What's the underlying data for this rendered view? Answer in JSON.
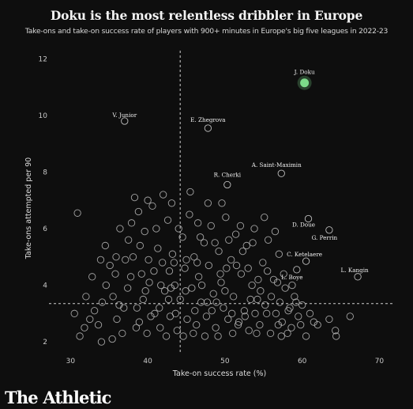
{
  "header": {
    "title": "Doku is the most relentless dribbler in Europe",
    "subtitle": "Take-ons and take-on success rate of players with 900+ minutes in Europe's big five leagues in 2022-23"
  },
  "brand": {
    "name": "The Athletic"
  },
  "colors": {
    "background": "#0e0e0e",
    "points": "#bdbdbd",
    "highlight": "#7ddc8a",
    "text": "#e8e8e8"
  },
  "chart_data": {
    "type": "scatter",
    "title": "Doku is the most relentless dribbler in Europe",
    "subtitle": "Take-ons and take-on success rate of players with 900+ minutes in Europe's big five leagues in 2022-23",
    "xlabel": "Take-on success rate (%)",
    "ylabel": "Take-ons attempted per 90",
    "xlim": [
      27,
      72
    ],
    "ylim": [
      1.5,
      12.4
    ],
    "xticks": [
      30,
      40,
      50,
      60,
      70
    ],
    "yticks": [
      2,
      4,
      6,
      8,
      10,
      12
    ],
    "grid": false,
    "reference_lines": {
      "x_mean": 44.2,
      "y_mean": 3.35
    },
    "highlight": {
      "label": "J. Doku",
      "x": 60.3,
      "y": 11.15
    },
    "labeled_points": [
      {
        "label": "V. Junior",
        "x": 37.0,
        "y": 9.8
      },
      {
        "label": "E. Zhegrova",
        "x": 47.8,
        "y": 9.55
      },
      {
        "label": "R. Cherki",
        "x": 50.3,
        "y": 7.55
      },
      {
        "label": "A. Saint-Maximin",
        "x": 57.3,
        "y": 7.95
      },
      {
        "label": "D. Doue",
        "x": 60.8,
        "y": 6.35
      },
      {
        "label": "G. Perrin",
        "x": 63.5,
        "y": 5.95
      },
      {
        "label": "C. Ketelaere",
        "x": 60.5,
        "y": 4.85
      },
      {
        "label": "L. Boye",
        "x": 59.3,
        "y": 4.55
      },
      {
        "label": "L. Kangin",
        "x": 67.2,
        "y": 4.3
      }
    ],
    "points": [
      [
        30.9,
        6.55
      ],
      [
        31.2,
        2.2
      ],
      [
        31.8,
        2.5
      ],
      [
        32.5,
        2.8
      ],
      [
        33.1,
        3.1
      ],
      [
        33.6,
        2.6
      ],
      [
        34.1,
        3.4
      ],
      [
        34.6,
        4.0
      ],
      [
        35.1,
        4.7
      ],
      [
        35.5,
        3.6
      ],
      [
        35.9,
        5.0
      ],
      [
        36.3,
        3.3
      ],
      [
        36.7,
        2.3
      ],
      [
        37.1,
        4.9
      ],
      [
        37.5,
        5.6
      ],
      [
        37.9,
        6.2
      ],
      [
        38.3,
        7.1
      ],
      [
        38.6,
        3.2
      ],
      [
        38.9,
        2.7
      ],
      [
        39.2,
        4.4
      ],
      [
        39.6,
        5.9
      ],
      [
        39.9,
        2.3
      ],
      [
        40.2,
        4.1
      ],
      [
        40.6,
        6.8
      ],
      [
        40.9,
        3.0
      ],
      [
        41.3,
        5.3
      ],
      [
        41.6,
        2.5
      ],
      [
        41.9,
        4.8
      ],
      [
        42.2,
        3.8
      ],
      [
        42.6,
        6.3
      ],
      [
        42.9,
        2.9
      ],
      [
        43.2,
        5.1
      ],
      [
        43.5,
        4.0
      ],
      [
        43.8,
        2.4
      ],
      [
        44.2,
        3.5
      ],
      [
        44.5,
        5.7
      ],
      [
        44.8,
        4.6
      ],
      [
        45.1,
        2.8
      ],
      [
        45.4,
        6.5
      ],
      [
        45.7,
        3.9
      ],
      [
        46.0,
        5.0
      ],
      [
        46.3,
        2.6
      ],
      [
        46.6,
        4.3
      ],
      [
        46.9,
        3.4
      ],
      [
        47.3,
        5.5
      ],
      [
        47.6,
        2.9
      ],
      [
        47.9,
        4.7
      ],
      [
        48.2,
        6.1
      ],
      [
        48.5,
        3.7
      ],
      [
        48.8,
        2.5
      ],
      [
        49.2,
        5.2
      ],
      [
        49.5,
        4.1
      ],
      [
        49.8,
        3.2
      ],
      [
        50.1,
        6.4
      ],
      [
        50.4,
        2.8
      ],
      [
        50.8,
        4.9
      ],
      [
        51.1,
        3.6
      ],
      [
        51.4,
        5.8
      ],
      [
        51.8,
        2.7
      ],
      [
        52.1,
        4.4
      ],
      [
        52.5,
        3.1
      ],
      [
        52.8,
        5.4
      ],
      [
        53.1,
        2.4
      ],
      [
        53.5,
        4.0
      ],
      [
        53.8,
        6.0
      ],
      [
        54.2,
        3.5
      ],
      [
        54.5,
        2.6
      ],
      [
        54.9,
        4.8
      ],
      [
        55.2,
        3.3
      ],
      [
        55.6,
        5.6
      ],
      [
        55.9,
        2.3
      ],
      [
        56.3,
        4.2
      ],
      [
        56.6,
        3.0
      ],
      [
        57.0,
        5.1
      ],
      [
        57.4,
        2.7
      ],
      [
        57.8,
        3.9
      ],
      [
        58.2,
        3.1
      ],
      [
        58.6,
        2.5
      ],
      [
        59.0,
        3.6
      ],
      [
        59.5,
        2.9
      ],
      [
        60.0,
        3.3
      ],
      [
        60.5,
        2.2
      ],
      [
        61.0,
        3.0
      ],
      [
        62.0,
        2.6
      ],
      [
        63.5,
        2.8
      ],
      [
        64.3,
        2.4
      ],
      [
        64.4,
        2.2
      ],
      [
        66.2,
        2.9
      ],
      [
        32.8,
        4.3
      ],
      [
        33.9,
        4.9
      ],
      [
        34.5,
        5.4
      ],
      [
        35.4,
        2.1
      ],
      [
        36.4,
        6.0
      ],
      [
        37.4,
        3.9
      ],
      [
        38.1,
        5.0
      ],
      [
        38.8,
        6.6
      ],
      [
        39.4,
        3.5
      ],
      [
        40.0,
        7.0
      ],
      [
        40.8,
        4.5
      ],
      [
        41.1,
        6.0
      ],
      [
        41.5,
        3.2
      ],
      [
        42.0,
        7.2
      ],
      [
        42.4,
        2.2
      ],
      [
        42.8,
        4.5
      ],
      [
        43.1,
        6.9
      ],
      [
        43.6,
        3.0
      ],
      [
        44.0,
        6.0
      ],
      [
        44.6,
        2.2
      ],
      [
        45.0,
        4.9
      ],
      [
        45.5,
        7.3
      ],
      [
        46.1,
        3.1
      ],
      [
        46.5,
        6.2
      ],
      [
        47.0,
        4.0
      ],
      [
        47.4,
        2.2
      ],
      [
        47.8,
        6.9
      ],
      [
        48.3,
        3.1
      ],
      [
        48.7,
        5.5
      ],
      [
        49.1,
        2.2
      ],
      [
        49.6,
        6.9
      ],
      [
        50.0,
        3.8
      ],
      [
        50.5,
        5.6
      ],
      [
        51.0,
        2.3
      ],
      [
        51.5,
        4.7
      ],
      [
        52.0,
        6.1
      ],
      [
        52.6,
        2.9
      ],
      [
        53.0,
        4.6
      ],
      [
        53.6,
        5.5
      ],
      [
        54.1,
        2.3
      ],
      [
        54.6,
        3.8
      ],
      [
        55.1,
        6.4
      ],
      [
        55.5,
        4.5
      ],
      [
        56.0,
        3.6
      ],
      [
        56.5,
        5.9
      ],
      [
        57.1,
        3.4
      ],
      [
        57.6,
        4.4
      ],
      [
        58.1,
        2.3
      ],
      [
        58.7,
        4.0
      ],
      [
        59.2,
        3.4
      ],
      [
        59.8,
        2.6
      ],
      [
        34.0,
        2.0
      ],
      [
        36.0,
        2.8
      ],
      [
        37.8,
        4.3
      ],
      [
        39.0,
        5.4
      ],
      [
        40.4,
        2.9
      ],
      [
        41.7,
        4.0
      ],
      [
        43.4,
        4.8
      ],
      [
        44.9,
        3.8
      ],
      [
        46.4,
        4.8
      ],
      [
        47.7,
        3.4
      ],
      [
        49.4,
        4.4
      ],
      [
        50.9,
        3.0
      ],
      [
        52.3,
        5.2
      ],
      [
        53.9,
        3.0
      ],
      [
        55.4,
        3.0
      ],
      [
        56.9,
        2.6
      ],
      [
        58.4,
        3.2
      ],
      [
        30.5,
        3.0
      ],
      [
        32.0,
        3.6
      ],
      [
        35.8,
        4.4
      ],
      [
        38.5,
        2.5
      ],
      [
        40.1,
        4.9
      ],
      [
        42.7,
        3.5
      ],
      [
        45.9,
        2.3
      ],
      [
        48.9,
        3.4
      ],
      [
        51.7,
        2.6
      ],
      [
        54.3,
        4.2
      ],
      [
        57.3,
        2.2
      ],
      [
        61.5,
        2.7
      ],
      [
        36.9,
        3.2
      ],
      [
        39.7,
        3.8
      ],
      [
        43.0,
        3.9
      ],
      [
        46.8,
        5.7
      ],
      [
        50.2,
        4.6
      ],
      [
        53.3,
        3.5
      ],
      [
        56.8,
        4.1
      ]
    ]
  }
}
